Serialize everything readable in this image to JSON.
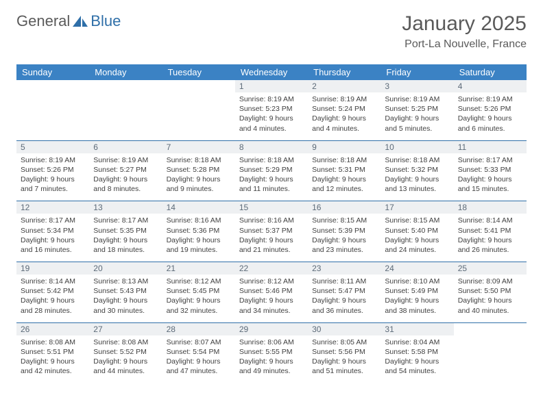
{
  "logo": {
    "general": "General",
    "blue": "Blue"
  },
  "header": {
    "month_title": "January 2025",
    "location": "Port-La Nouvelle, France"
  },
  "dow": [
    "Sunday",
    "Monday",
    "Tuesday",
    "Wednesday",
    "Thursday",
    "Friday",
    "Saturday"
  ],
  "colors": {
    "weekday_bg": "#3b82c4",
    "weekday_fg": "#ffffff",
    "daynum_bg": "#eef0f2",
    "daynum_fg": "#5c6a78",
    "rule": "#2f6fa8",
    "text": "#404040",
    "background": "#ffffff",
    "logo_blue": "#2f6fa8",
    "logo_gray": "#5a5a5a"
  },
  "typography": {
    "title_fontsize": 30,
    "location_fontsize": 16,
    "dow_fontsize": 13,
    "daynum_fontsize": 12,
    "cell_fontsize": 10.5
  },
  "layout": {
    "columns": 7,
    "rows": 5
  },
  "weeks": [
    [
      null,
      null,
      null,
      {
        "n": "1",
        "sunrise": "Sunrise: 8:19 AM",
        "sunset": "Sunset: 5:23 PM",
        "d1": "Daylight: 9 hours",
        "d2": "and 4 minutes."
      },
      {
        "n": "2",
        "sunrise": "Sunrise: 8:19 AM",
        "sunset": "Sunset: 5:24 PM",
        "d1": "Daylight: 9 hours",
        "d2": "and 4 minutes."
      },
      {
        "n": "3",
        "sunrise": "Sunrise: 8:19 AM",
        "sunset": "Sunset: 5:25 PM",
        "d1": "Daylight: 9 hours",
        "d2": "and 5 minutes."
      },
      {
        "n": "4",
        "sunrise": "Sunrise: 8:19 AM",
        "sunset": "Sunset: 5:26 PM",
        "d1": "Daylight: 9 hours",
        "d2": "and 6 minutes."
      }
    ],
    [
      {
        "n": "5",
        "sunrise": "Sunrise: 8:19 AM",
        "sunset": "Sunset: 5:26 PM",
        "d1": "Daylight: 9 hours",
        "d2": "and 7 minutes."
      },
      {
        "n": "6",
        "sunrise": "Sunrise: 8:19 AM",
        "sunset": "Sunset: 5:27 PM",
        "d1": "Daylight: 9 hours",
        "d2": "and 8 minutes."
      },
      {
        "n": "7",
        "sunrise": "Sunrise: 8:18 AM",
        "sunset": "Sunset: 5:28 PM",
        "d1": "Daylight: 9 hours",
        "d2": "and 9 minutes."
      },
      {
        "n": "8",
        "sunrise": "Sunrise: 8:18 AM",
        "sunset": "Sunset: 5:29 PM",
        "d1": "Daylight: 9 hours",
        "d2": "and 11 minutes."
      },
      {
        "n": "9",
        "sunrise": "Sunrise: 8:18 AM",
        "sunset": "Sunset: 5:31 PM",
        "d1": "Daylight: 9 hours",
        "d2": "and 12 minutes."
      },
      {
        "n": "10",
        "sunrise": "Sunrise: 8:18 AM",
        "sunset": "Sunset: 5:32 PM",
        "d1": "Daylight: 9 hours",
        "d2": "and 13 minutes."
      },
      {
        "n": "11",
        "sunrise": "Sunrise: 8:17 AM",
        "sunset": "Sunset: 5:33 PM",
        "d1": "Daylight: 9 hours",
        "d2": "and 15 minutes."
      }
    ],
    [
      {
        "n": "12",
        "sunrise": "Sunrise: 8:17 AM",
        "sunset": "Sunset: 5:34 PM",
        "d1": "Daylight: 9 hours",
        "d2": "and 16 minutes."
      },
      {
        "n": "13",
        "sunrise": "Sunrise: 8:17 AM",
        "sunset": "Sunset: 5:35 PM",
        "d1": "Daylight: 9 hours",
        "d2": "and 18 minutes."
      },
      {
        "n": "14",
        "sunrise": "Sunrise: 8:16 AM",
        "sunset": "Sunset: 5:36 PM",
        "d1": "Daylight: 9 hours",
        "d2": "and 19 minutes."
      },
      {
        "n": "15",
        "sunrise": "Sunrise: 8:16 AM",
        "sunset": "Sunset: 5:37 PM",
        "d1": "Daylight: 9 hours",
        "d2": "and 21 minutes."
      },
      {
        "n": "16",
        "sunrise": "Sunrise: 8:15 AM",
        "sunset": "Sunset: 5:39 PM",
        "d1": "Daylight: 9 hours",
        "d2": "and 23 minutes."
      },
      {
        "n": "17",
        "sunrise": "Sunrise: 8:15 AM",
        "sunset": "Sunset: 5:40 PM",
        "d1": "Daylight: 9 hours",
        "d2": "and 24 minutes."
      },
      {
        "n": "18",
        "sunrise": "Sunrise: 8:14 AM",
        "sunset": "Sunset: 5:41 PM",
        "d1": "Daylight: 9 hours",
        "d2": "and 26 minutes."
      }
    ],
    [
      {
        "n": "19",
        "sunrise": "Sunrise: 8:14 AM",
        "sunset": "Sunset: 5:42 PM",
        "d1": "Daylight: 9 hours",
        "d2": "and 28 minutes."
      },
      {
        "n": "20",
        "sunrise": "Sunrise: 8:13 AM",
        "sunset": "Sunset: 5:43 PM",
        "d1": "Daylight: 9 hours",
        "d2": "and 30 minutes."
      },
      {
        "n": "21",
        "sunrise": "Sunrise: 8:12 AM",
        "sunset": "Sunset: 5:45 PM",
        "d1": "Daylight: 9 hours",
        "d2": "and 32 minutes."
      },
      {
        "n": "22",
        "sunrise": "Sunrise: 8:12 AM",
        "sunset": "Sunset: 5:46 PM",
        "d1": "Daylight: 9 hours",
        "d2": "and 34 minutes."
      },
      {
        "n": "23",
        "sunrise": "Sunrise: 8:11 AM",
        "sunset": "Sunset: 5:47 PM",
        "d1": "Daylight: 9 hours",
        "d2": "and 36 minutes."
      },
      {
        "n": "24",
        "sunrise": "Sunrise: 8:10 AM",
        "sunset": "Sunset: 5:49 PM",
        "d1": "Daylight: 9 hours",
        "d2": "and 38 minutes."
      },
      {
        "n": "25",
        "sunrise": "Sunrise: 8:09 AM",
        "sunset": "Sunset: 5:50 PM",
        "d1": "Daylight: 9 hours",
        "d2": "and 40 minutes."
      }
    ],
    [
      {
        "n": "26",
        "sunrise": "Sunrise: 8:08 AM",
        "sunset": "Sunset: 5:51 PM",
        "d1": "Daylight: 9 hours",
        "d2": "and 42 minutes."
      },
      {
        "n": "27",
        "sunrise": "Sunrise: 8:08 AM",
        "sunset": "Sunset: 5:52 PM",
        "d1": "Daylight: 9 hours",
        "d2": "and 44 minutes."
      },
      {
        "n": "28",
        "sunrise": "Sunrise: 8:07 AM",
        "sunset": "Sunset: 5:54 PM",
        "d1": "Daylight: 9 hours",
        "d2": "and 47 minutes."
      },
      {
        "n": "29",
        "sunrise": "Sunrise: 8:06 AM",
        "sunset": "Sunset: 5:55 PM",
        "d1": "Daylight: 9 hours",
        "d2": "and 49 minutes."
      },
      {
        "n": "30",
        "sunrise": "Sunrise: 8:05 AM",
        "sunset": "Sunset: 5:56 PM",
        "d1": "Daylight: 9 hours",
        "d2": "and 51 minutes."
      },
      {
        "n": "31",
        "sunrise": "Sunrise: 8:04 AM",
        "sunset": "Sunset: 5:58 PM",
        "d1": "Daylight: 9 hours",
        "d2": "and 54 minutes."
      },
      null
    ]
  ]
}
